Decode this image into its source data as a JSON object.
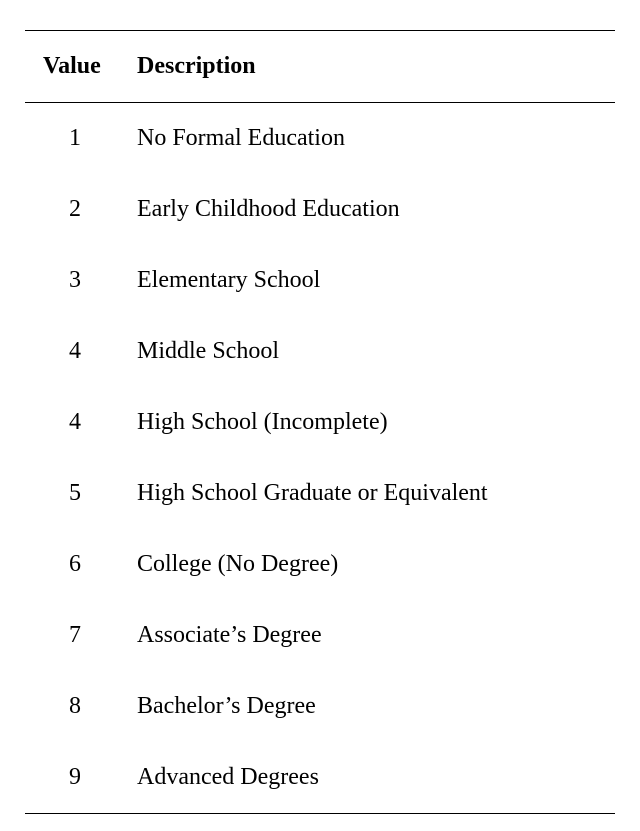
{
  "table": {
    "columns": [
      "Value",
      "Description"
    ],
    "rows": [
      {
        "value": "1",
        "description": "No Formal Education"
      },
      {
        "value": "2",
        "description": "Early Childhood Education"
      },
      {
        "value": "3",
        "description": "Elementary School"
      },
      {
        "value": "4",
        "description": "Middle School"
      },
      {
        "value": "4",
        "description": "High School (Incomplete)"
      },
      {
        "value": "5",
        "description": "High School Graduate or Equivalent"
      },
      {
        "value": "6",
        "description": "College (No Degree)"
      },
      {
        "value": "7",
        "description": "Associate’s Degree"
      },
      {
        "value": "8",
        "description": "Bachelor’s Degree"
      },
      {
        "value": "9",
        "description": "Advanced Degrees"
      }
    ],
    "styling": {
      "type": "table",
      "font_family": "serif",
      "header_fontsize": 24,
      "header_fontweight": "bold",
      "body_fontsize": 24,
      "text_color": "#000000",
      "background_color": "#ffffff",
      "rule_color": "#000000",
      "top_rule_width": 1.5,
      "mid_rule_width": 1,
      "bottom_rule_width": 1.5,
      "row_padding_vertical": 22,
      "value_col_align": "center",
      "desc_col_align": "left",
      "value_col_width": 100
    }
  }
}
